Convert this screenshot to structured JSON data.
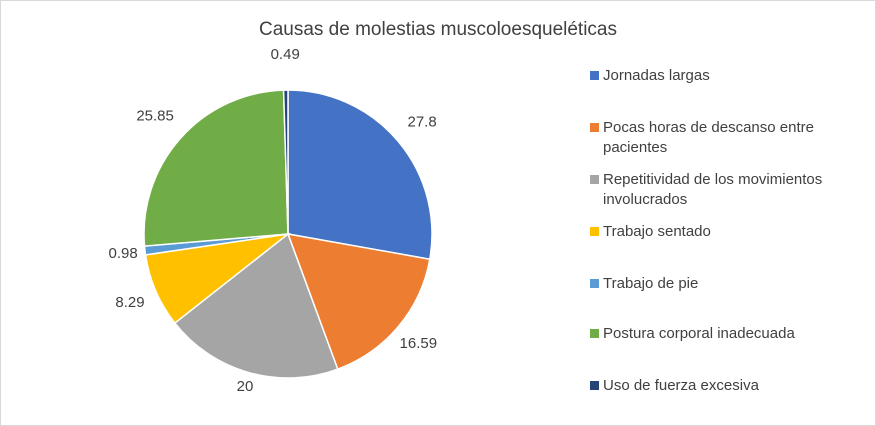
{
  "chart_data": {
    "type": "pie",
    "title": "Causas de molestias muscoloesqueléticas",
    "legend_position": "right",
    "categories": [
      "Jornadas largas",
      "Pocas horas de descanso entre pacientes",
      "Repetitividad de los movimientos involucrados",
      "Trabajo sentado",
      "Trabajo de pie",
      "Postura corporal inadecuada",
      "Uso de fuerza excesiva"
    ],
    "legend_labels": [
      "Jornadas largas",
      "Pocas horas de descanso entre\npacientes",
      "Repetitividad de los movimientos\ninvolucrados",
      "Trabajo sentado",
      "Trabajo de pie",
      "Postura corporal inadecuada",
      "Uso de fuerza excesiva"
    ],
    "values": [
      27.8,
      16.59,
      20,
      8.29,
      0.98,
      25.85,
      0.49
    ],
    "data_labels": [
      "27.8",
      "16.59",
      "20",
      "8.29",
      "0.98",
      "25.85",
      "0.49"
    ],
    "colors": [
      "#4472C4",
      "#ED7D31",
      "#A5A5A5",
      "#FFC000",
      "#5B9BD5",
      "#70AD47",
      "#264478"
    ]
  }
}
